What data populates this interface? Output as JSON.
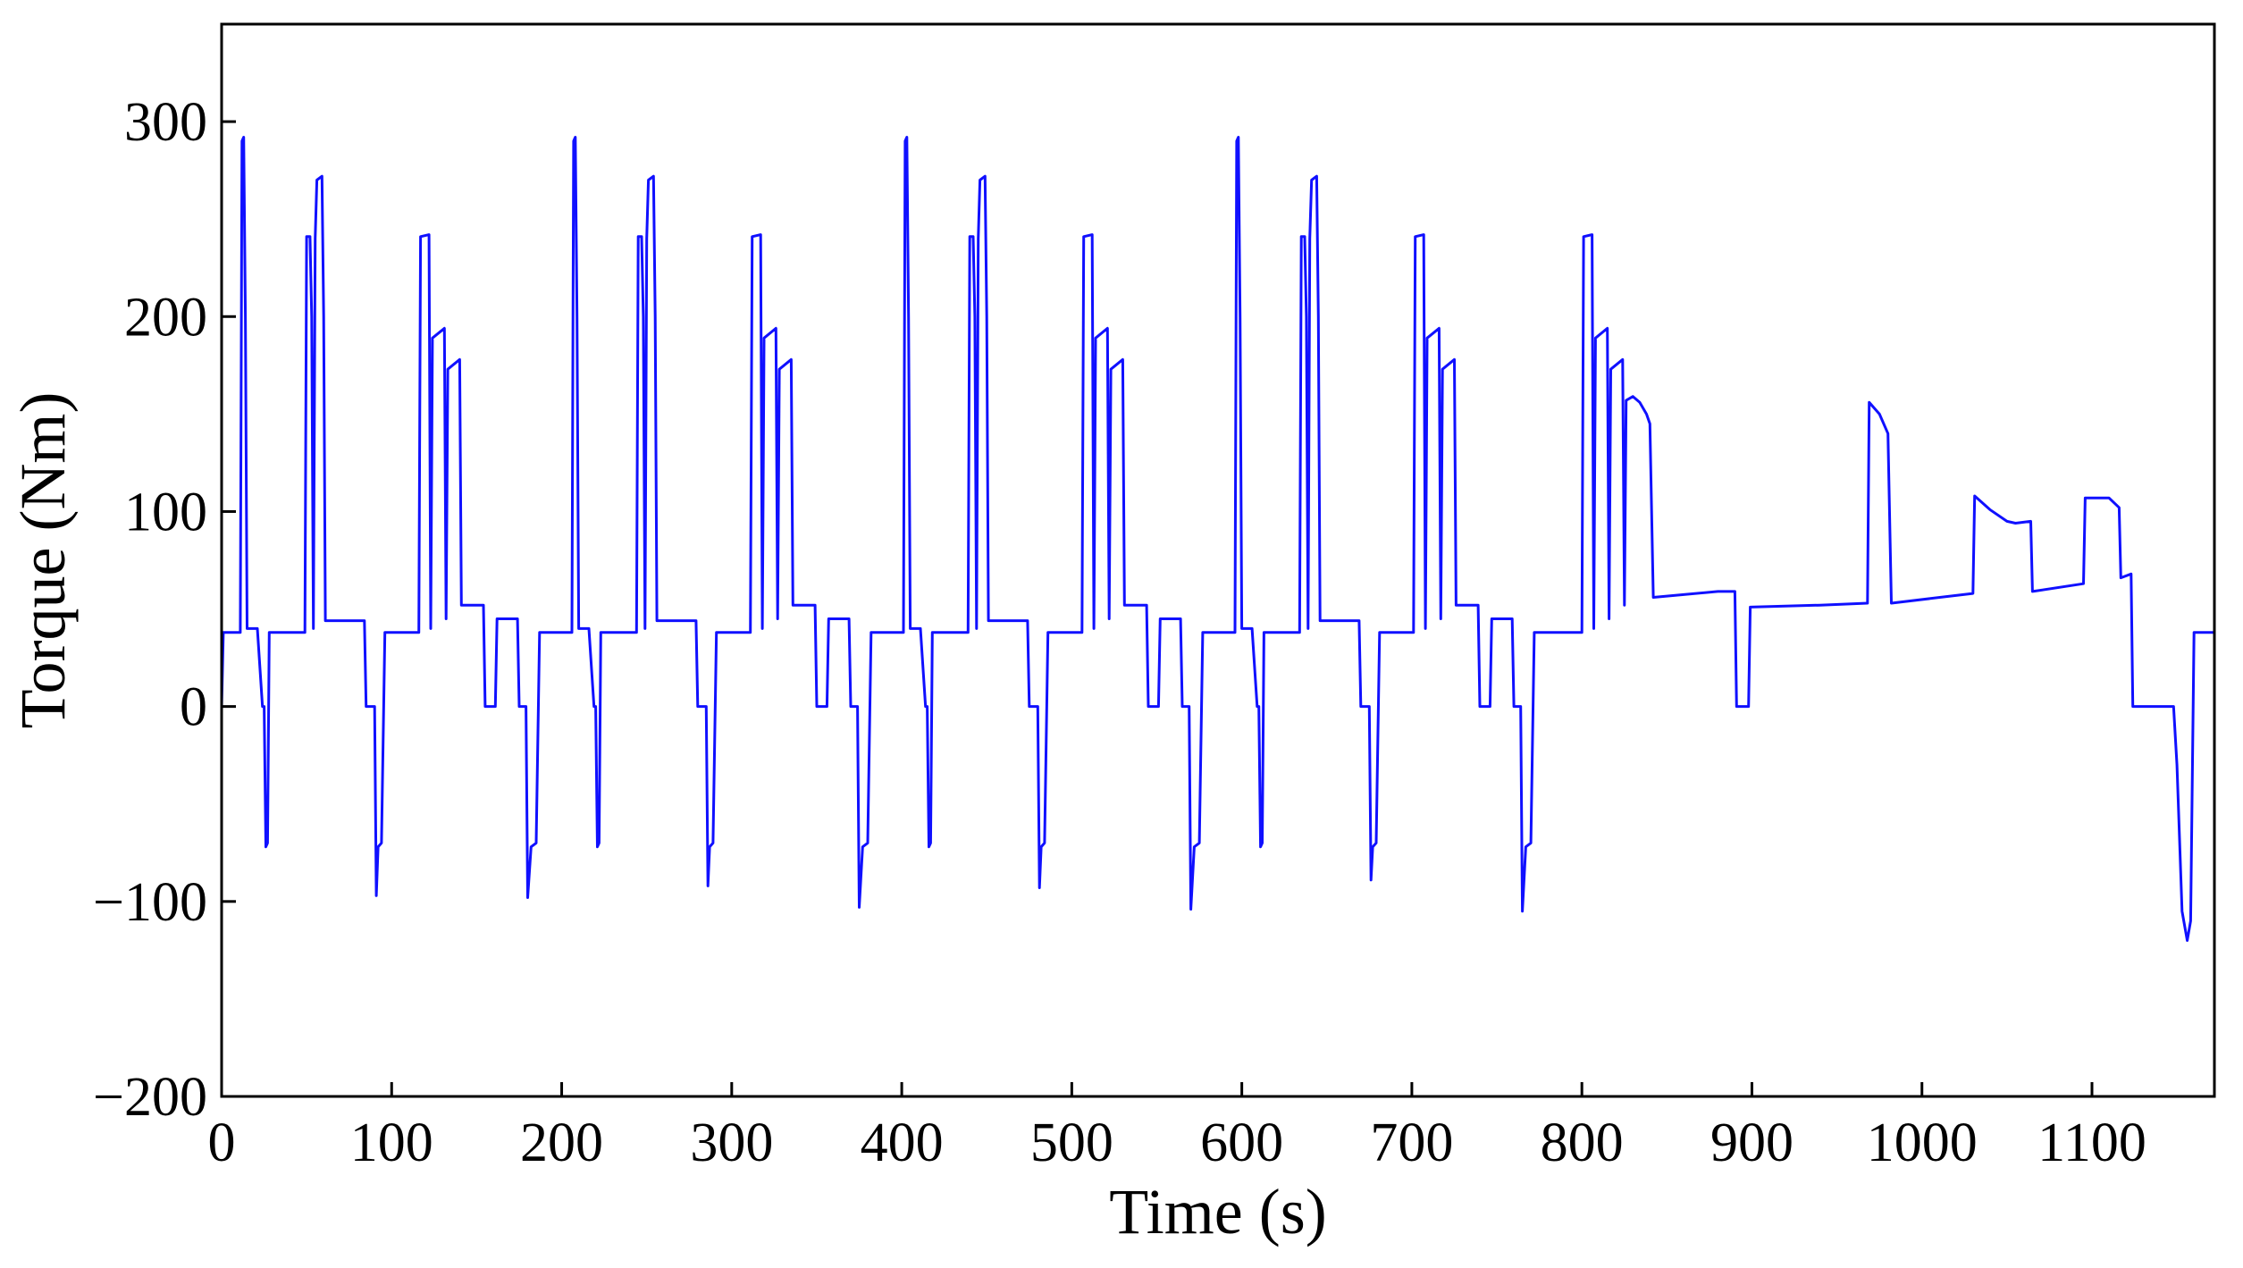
{
  "chart_data": {
    "type": "line",
    "xlabel": "Time (s)",
    "ylabel": "Torque (Nm)",
    "color": "#1010ff",
    "xlim": [
      0,
      1172
    ],
    "ylim": [
      -200,
      350
    ],
    "xticks": [
      0,
      100,
      200,
      300,
      400,
      500,
      600,
      700,
      800,
      900,
      1000,
      1100
    ],
    "yticks": [
      {
        "value": -200,
        "label": "−200"
      },
      {
        "value": -100,
        "label": "−100"
      },
      0,
      100,
      200,
      300
    ],
    "x": [
      0,
      1,
      11,
      12,
      13,
      14,
      15,
      21,
      24,
      25,
      26,
      27,
      28,
      49,
      50,
      52,
      53,
      54,
      55,
      56,
      59,
      60,
      61,
      84,
      85,
      90,
      91,
      92,
      94,
      96,
      116,
      117,
      122,
      123,
      124,
      131,
      132,
      133,
      140,
      141,
      154,
      155,
      161,
      162,
      174,
      175,
      179,
      180,
      182,
      185,
      187,
      195,
      196,
      206,
      207,
      208,
      209,
      210,
      216,
      219,
      220,
      221,
      222,
      223,
      244,
      245,
      247,
      248,
      249,
      250,
      251,
      254,
      255,
      256,
      279,
      280,
      285,
      286,
      287,
      289,
      291,
      311,
      312,
      317,
      318,
      319,
      326,
      327,
      328,
      335,
      336,
      349,
      350,
      356,
      357,
      369,
      370,
      374,
      375,
      377,
      380,
      382,
      390,
      391,
      401,
      402,
      403,
      404,
      405,
      411,
      414,
      415,
      416,
      417,
      418,
      439,
      440,
      442,
      443,
      444,
      445,
      446,
      449,
      450,
      451,
      474,
      475,
      480,
      481,
      482,
      484,
      486,
      506,
      507,
      512,
      513,
      514,
      521,
      522,
      523,
      530,
      531,
      544,
      545,
      551,
      552,
      564,
      565,
      569,
      570,
      572,
      575,
      577,
      585,
      586,
      596,
      597,
      598,
      599,
      600,
      606,
      609,
      610,
      611,
      612,
      613,
      634,
      635,
      637,
      638,
      639,
      640,
      641,
      644,
      645,
      646,
      669,
      670,
      675,
      676,
      677,
      679,
      681,
      701,
      702,
      707,
      708,
      709,
      716,
      717,
      718,
      725,
      726,
      739,
      740,
      746,
      747,
      759,
      760,
      764,
      765,
      767,
      770,
      772,
      800,
      801,
      806,
      807,
      808,
      815,
      816,
      817,
      824,
      825,
      826,
      830,
      834,
      838,
      840,
      842,
      880,
      890,
      891,
      898,
      899,
      940,
      968,
      969,
      975,
      980,
      982,
      1030,
      1031,
      1040,
      1050,
      1055,
      1064,
      1065,
      1095,
      1096,
      1110,
      1116,
      1117,
      1123,
      1124,
      1148,
      1150,
      1153,
      1156,
      1158,
      1160,
      1172
    ],
    "values": [
      0,
      38,
      38,
      290,
      292,
      200,
      40,
      40,
      0,
      0,
      -72,
      -70,
      38,
      38,
      241,
      241,
      200,
      40,
      240,
      270,
      272,
      200,
      44,
      44,
      0,
      0,
      -97,
      -72,
      -70,
      38,
      38,
      241,
      242,
      40,
      189,
      194,
      45,
      173,
      178,
      52,
      52,
      0,
      0,
      45,
      45,
      0,
      0,
      -98,
      -72,
      -70,
      38,
      38,
      38,
      38,
      290,
      292,
      200,
      40,
      40,
      0,
      0,
      -72,
      -70,
      38,
      38,
      241,
      241,
      200,
      40,
      240,
      270,
      272,
      200,
      44,
      44,
      0,
      0,
      -92,
      -72,
      -70,
      38,
      38,
      241,
      242,
      40,
      189,
      194,
      45,
      173,
      178,
      52,
      52,
      0,
      0,
      45,
      45,
      0,
      0,
      -103,
      -72,
      -70,
      38,
      38,
      38,
      38,
      290,
      292,
      200,
      40,
      40,
      0,
      0,
      -72,
      -70,
      38,
      38,
      241,
      241,
      200,
      40,
      240,
      270,
      272,
      200,
      44,
      44,
      0,
      0,
      -93,
      -72,
      -70,
      38,
      38,
      241,
      242,
      40,
      189,
      194,
      45,
      173,
      178,
      52,
      52,
      0,
      0,
      45,
      45,
      0,
      0,
      -104,
      -72,
      -70,
      38,
      38,
      38,
      38,
      290,
      292,
      200,
      40,
      40,
      0,
      0,
      -72,
      -70,
      38,
      38,
      241,
      241,
      200,
      40,
      240,
      270,
      272,
      200,
      44,
      44,
      0,
      0,
      -89,
      -72,
      -70,
      38,
      38,
      241,
      242,
      40,
      189,
      194,
      45,
      173,
      178,
      52,
      52,
      0,
      0,
      45,
      45,
      0,
      0,
      -105,
      -72,
      -70,
      38,
      38,
      241,
      242,
      40,
      189,
      194,
      45,
      173,
      178,
      52,
      157,
      159,
      156,
      150,
      145,
      56,
      59,
      59,
      0,
      0,
      51,
      52,
      53,
      156,
      150,
      140,
      53,
      58,
      108,
      101,
      95,
      94,
      95,
      59,
      63,
      107,
      107,
      102,
      66,
      68,
      0,
      0,
      -30,
      -105,
      -120,
      -110,
      38,
      38
    ]
  }
}
